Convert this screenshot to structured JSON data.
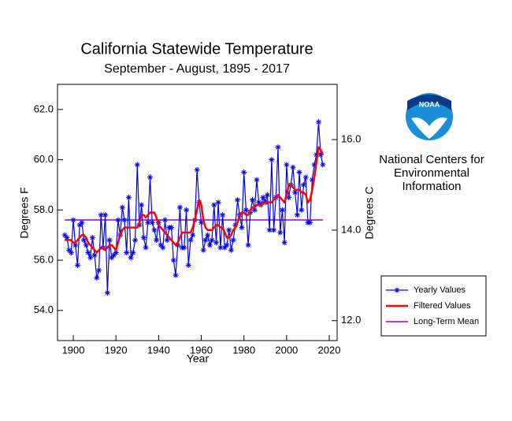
{
  "chart_data": {
    "type": "line",
    "title": "California Statewide Temperature",
    "subtitle": "September - August, 1895 - 2017",
    "xlabel": "Year",
    "ylabel": "Degrees F",
    "y2label": "Degrees C",
    "x": [
      1896,
      1897,
      1898,
      1899,
      1900,
      1901,
      1902,
      1903,
      1904,
      1905,
      1906,
      1907,
      1908,
      1909,
      1910,
      1911,
      1912,
      1913,
      1914,
      1915,
      1916,
      1917,
      1918,
      1919,
      1920,
      1921,
      1922,
      1923,
      1924,
      1925,
      1926,
      1927,
      1928,
      1929,
      1930,
      1931,
      1932,
      1933,
      1934,
      1935,
      1936,
      1937,
      1938,
      1939,
      1940,
      1941,
      1942,
      1943,
      1944,
      1945,
      1946,
      1947,
      1948,
      1949,
      1950,
      1951,
      1952,
      1953,
      1954,
      1955,
      1956,
      1957,
      1958,
      1959,
      1960,
      1961,
      1962,
      1963,
      1964,
      1965,
      1966,
      1967,
      1968,
      1969,
      1970,
      1971,
      1972,
      1973,
      1974,
      1975,
      1976,
      1977,
      1978,
      1979,
      1980,
      1981,
      1982,
      1983,
      1984,
      1985,
      1986,
      1987,
      1988,
      1989,
      1990,
      1991,
      1992,
      1993,
      1994,
      1995,
      1996,
      1997,
      1998,
      1999,
      2000,
      2001,
      2002,
      2003,
      2004,
      2005,
      2006,
      2007,
      2008,
      2009,
      2010,
      2011,
      2012,
      2013,
      2014,
      2015,
      2016,
      2017
    ],
    "series": [
      {
        "name": "Yearly Values",
        "color": "#0000ee",
        "marker": "asterisk",
        "values": [
          57.0,
          56.9,
          56.4,
          56.3,
          57.6,
          56.6,
          55.8,
          57.4,
          57.5,
          56.8,
          56.6,
          56.3,
          56.1,
          56.9,
          56.2,
          55.3,
          55.6,
          57.8,
          56.5,
          57.8,
          54.7,
          56.8,
          56.1,
          56.2,
          56.3,
          57.6,
          57.0,
          58.1,
          57.6,
          56.3,
          58.5,
          56.1,
          56.3,
          56.8,
          59.8,
          57.4,
          58.2,
          56.9,
          56.5,
          57.5,
          59.3,
          57.5,
          57.2,
          56.8,
          57.5,
          56.6,
          56.5,
          57.6,
          56.8,
          57.3,
          57.3,
          56.0,
          55.4,
          56.6,
          58.1,
          56.5,
          56.5,
          58.0,
          55.8,
          56.8,
          57.0,
          57.6,
          59.6,
          58.3,
          57.5,
          56.4,
          56.8,
          57.0,
          56.6,
          56.8,
          58.2,
          56.7,
          58.3,
          56.5,
          57.8,
          56.5,
          56.6,
          57.2,
          56.4,
          56.8,
          57.4,
          58.4,
          57.8,
          57.3,
          59.5,
          58.0,
          56.6,
          57.9,
          58.4,
          58.0,
          59.2,
          58.3,
          58.2,
          58.5,
          58.3,
          58.6,
          57.2,
          60.0,
          57.2,
          58.5,
          60.5,
          57.1,
          58.0,
          56.7,
          59.8,
          58.5,
          59.0,
          59.7,
          58.7,
          57.8,
          59.5,
          58.0,
          59.0,
          59.3,
          57.5,
          57.5,
          59.2,
          59.8,
          60.2,
          61.5,
          60.2,
          59.8
        ]
      },
      {
        "name": "Filtered Values",
        "color": "#ff0000",
        "values": [
          56.8,
          56.8,
          56.8,
          56.8,
          56.7,
          56.7,
          56.8,
          56.9,
          57.0,
          57.0,
          56.9,
          56.7,
          56.6,
          56.5,
          56.4,
          56.3,
          56.4,
          56.5,
          56.5,
          56.4,
          56.5,
          56.6,
          56.6,
          56.5,
          56.4,
          56.7,
          57.0,
          57.2,
          57.3,
          57.3,
          57.3,
          57.3,
          57.3,
          57.3,
          57.3,
          57.5,
          57.8,
          57.8,
          57.7,
          57.8,
          57.9,
          57.9,
          57.9,
          57.7,
          57.4,
          57.3,
          57.2,
          57.1,
          57.0,
          56.9,
          56.8,
          56.7,
          56.6,
          56.7,
          56.9,
          57.1,
          57.1,
          57.1,
          57.1,
          57.1,
          57.3,
          57.6,
          58.0,
          58.4,
          58.2,
          57.6,
          57.3,
          57.2,
          57.2,
          57.2,
          57.3,
          57.4,
          57.4,
          57.3,
          57.3,
          57.1,
          56.9,
          56.9,
          57.0,
          57.2,
          57.3,
          57.5,
          57.8,
          57.9,
          57.9,
          57.8,
          57.8,
          58.0,
          58.1,
          58.1,
          58.2,
          58.2,
          58.2,
          58.3,
          58.3,
          58.3,
          58.3,
          58.3,
          58.4,
          58.5,
          58.6,
          58.5,
          58.4,
          58.3,
          58.6,
          59.0,
          59.0,
          58.9,
          58.8,
          58.8,
          58.8,
          58.7,
          58.7,
          58.6,
          58.3,
          58.4,
          58.8,
          59.3,
          59.9,
          60.5,
          60.4,
          60.2
        ]
      }
    ],
    "mean": {
      "name": "Long-Term Mean",
      "color": "#9900cc",
      "value": 57.6
    },
    "xlim": [
      1892.6,
      2023.7
    ],
    "xticks": [
      1900,
      1920,
      1940,
      1960,
      1980,
      2000,
      2020
    ],
    "ylim": [
      52.8,
      63.0
    ],
    "yticks": [
      {
        "value": 54,
        "label": "54.0"
      },
      {
        "value": 56,
        "label": "56.0"
      },
      {
        "value": 58,
        "label": "58.0"
      },
      {
        "value": 60,
        "label": "60.0"
      },
      {
        "value": 62,
        "label": "62.0"
      }
    ],
    "y2lim": [
      11.56,
      17.22
    ],
    "y2ticks": [
      {
        "value": 12,
        "label": "12.0"
      },
      {
        "value": 14,
        "label": "14.0"
      },
      {
        "value": 16,
        "label": "16.0"
      }
    ],
    "legend": "lower right"
  },
  "logo": {
    "name": "NOAA",
    "lines": [
      "National Centers for",
      "Environmental",
      "Information"
    ]
  }
}
